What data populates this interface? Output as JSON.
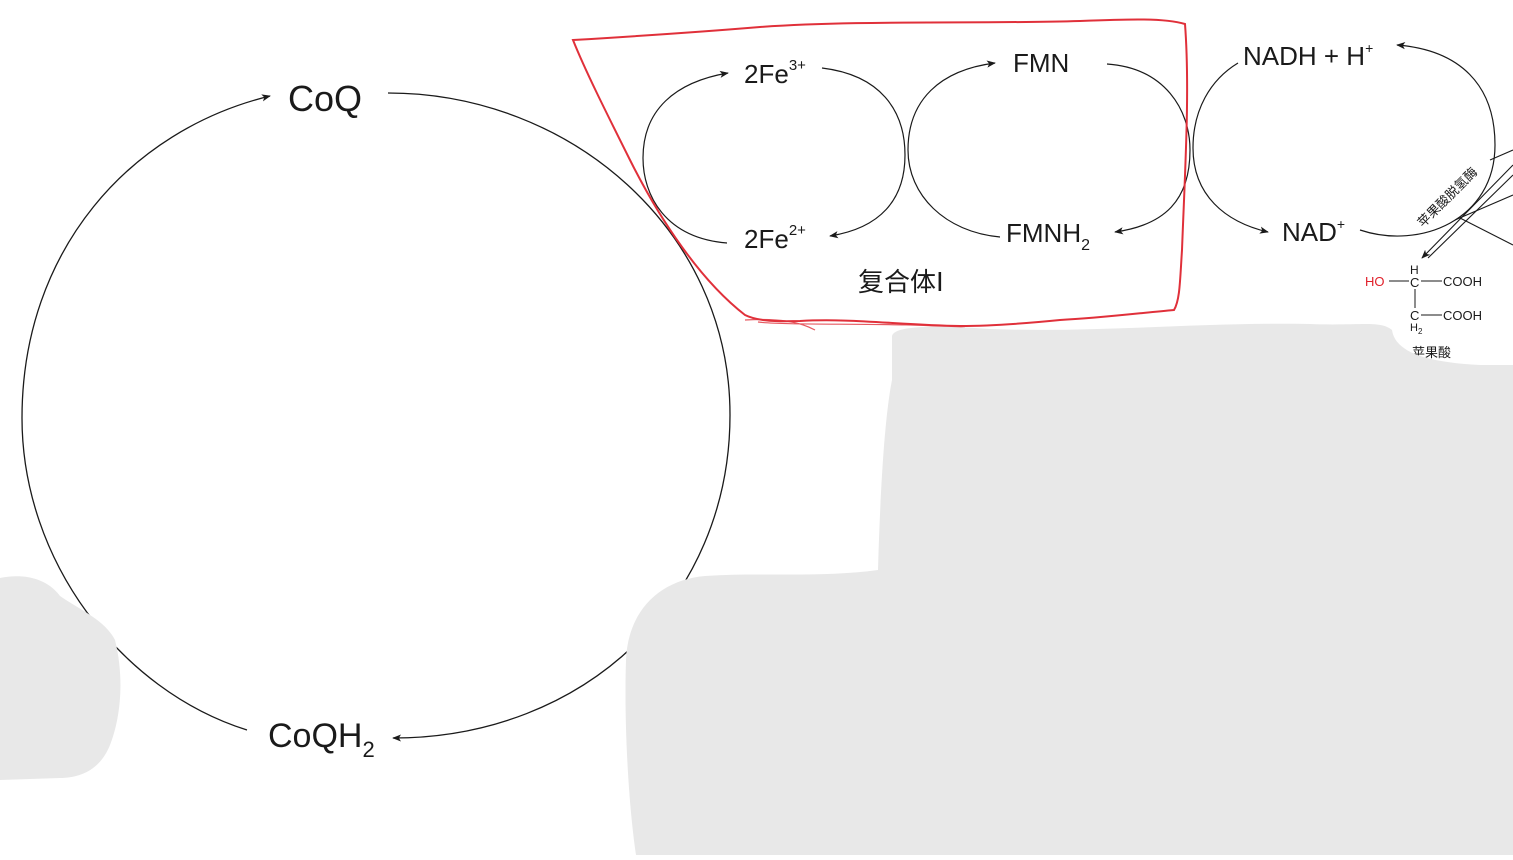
{
  "colors": {
    "background": "#ffffff",
    "line": "#1a1a1a",
    "highlight_box": "#e0303a",
    "hydroxyl": "#e0202a",
    "gray_overlay": "#e8e8e8"
  },
  "diagram": {
    "coq_cycle": {
      "top_label": "CoQ",
      "bottom_label": "CoQH",
      "bottom_sub": "2"
    },
    "complex1": {
      "fe3_label": "2Fe",
      "fe3_sup": "3+",
      "fe2_label": "2Fe",
      "fe2_sup": "2+",
      "fmn_label": "FMN",
      "fmnh2_label": "FMNH",
      "fmnh2_sub": "2",
      "box_label": "复合体I"
    },
    "nadh_cycle": {
      "nadh_label": "NADH + H",
      "nadh_sup": "+",
      "nad_label": "NAD",
      "nad_sup": "+"
    },
    "malate": {
      "enzyme_label": "苹果酸脱氢酶",
      "substrate_name": "苹果酸",
      "ho": "HO",
      "h_top": "H",
      "c1": "C",
      "cooh1": "COOH",
      "c2": "C",
      "h2": "H",
      "h2_sub": "2",
      "cooh2": "COOH"
    }
  }
}
